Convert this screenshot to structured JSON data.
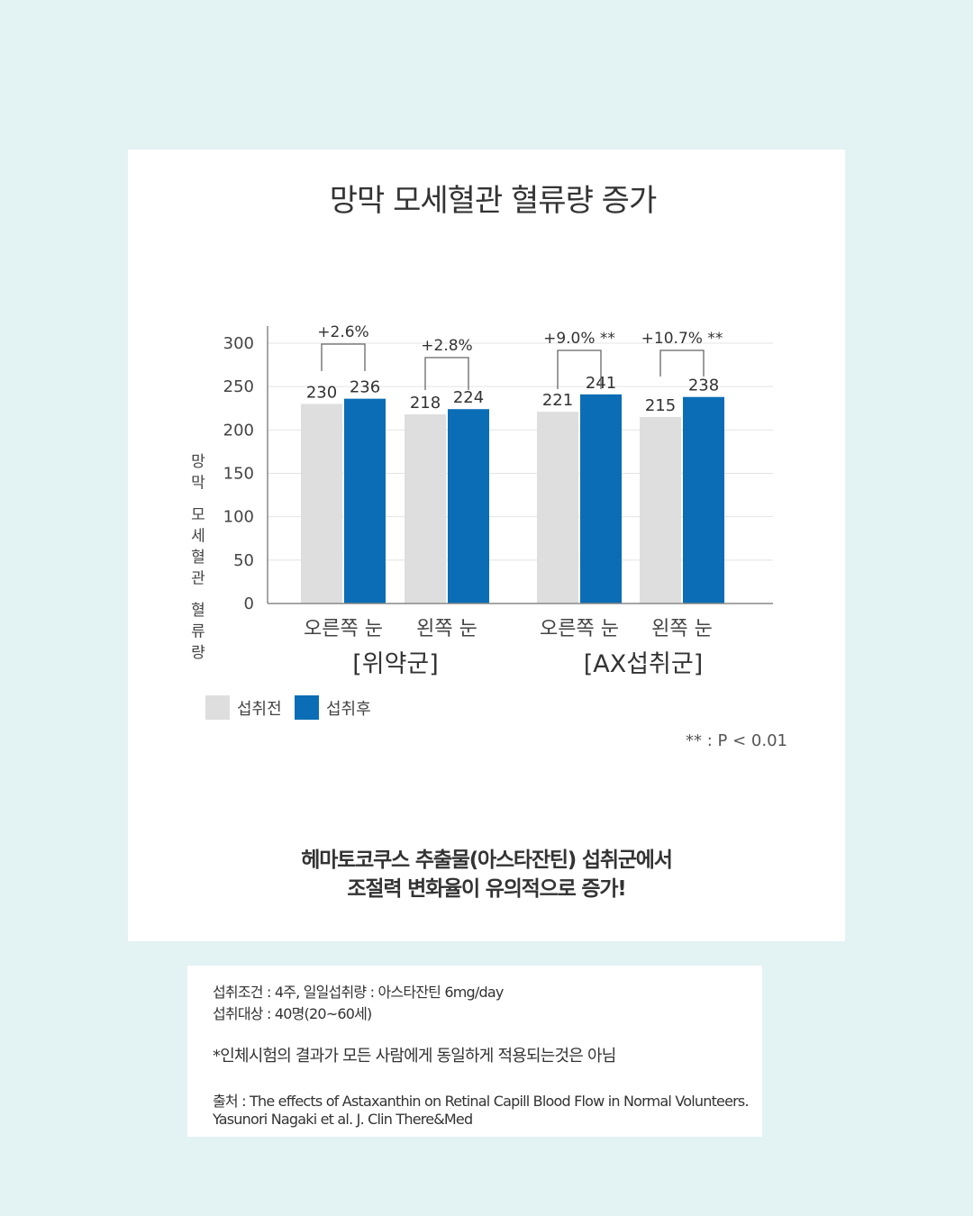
{
  "chart_data": {
    "type": "bar",
    "title": "망막 모세혈관 혈류량 증가",
    "ylabel": "망막 모세혈관 혈류량",
    "ylim": [
      0,
      300
    ],
    "yticks": [
      "0",
      "50",
      "100",
      "150",
      "200",
      "250",
      "300"
    ],
    "categories": [
      "오른쪽 눈",
      "왼쪽 눈",
      "오른쪽 눈",
      "왼쪽 눈"
    ],
    "groups": [
      "[위약군]",
      "[AX섭취군]"
    ],
    "series": [
      {
        "name": "섭취전",
        "values": [
          230,
          218,
          221,
          215
        ],
        "color": "#dedede"
      },
      {
        "name": "섭취후",
        "values": [
          236,
          224,
          241,
          238
        ],
        "color": "#0a6db5"
      }
    ],
    "annotations": [
      "+2.6%",
      "+2.8%",
      "+9.0% **",
      "+10.7% **"
    ],
    "p_note": "** : P < 0.01",
    "grid": true,
    "legend": "bottom-left"
  },
  "caption": {
    "line1": "헤마토코쿠스 추출물(아스타잔틴) 섭취군에서",
    "line2": "조절력 변화율이 유의적으로 증가!"
  },
  "notes": {
    "condition": "섭취조건 : 4주, 일일섭취량 : 아스타잔틴 6mg/day",
    "subjects": "섭취대상 : 40명(20~60세)",
    "disclaimer": "*인체시험의 결과가 모든 사람에게 동일하게 적용되는것은 아님",
    "source1": "출처 : The effects of Astaxanthin on Retinal Capill Blood Flow in Normal Volunteers.",
    "source2": "Yasunori Nagaki et al. J. Clin There&Med"
  }
}
